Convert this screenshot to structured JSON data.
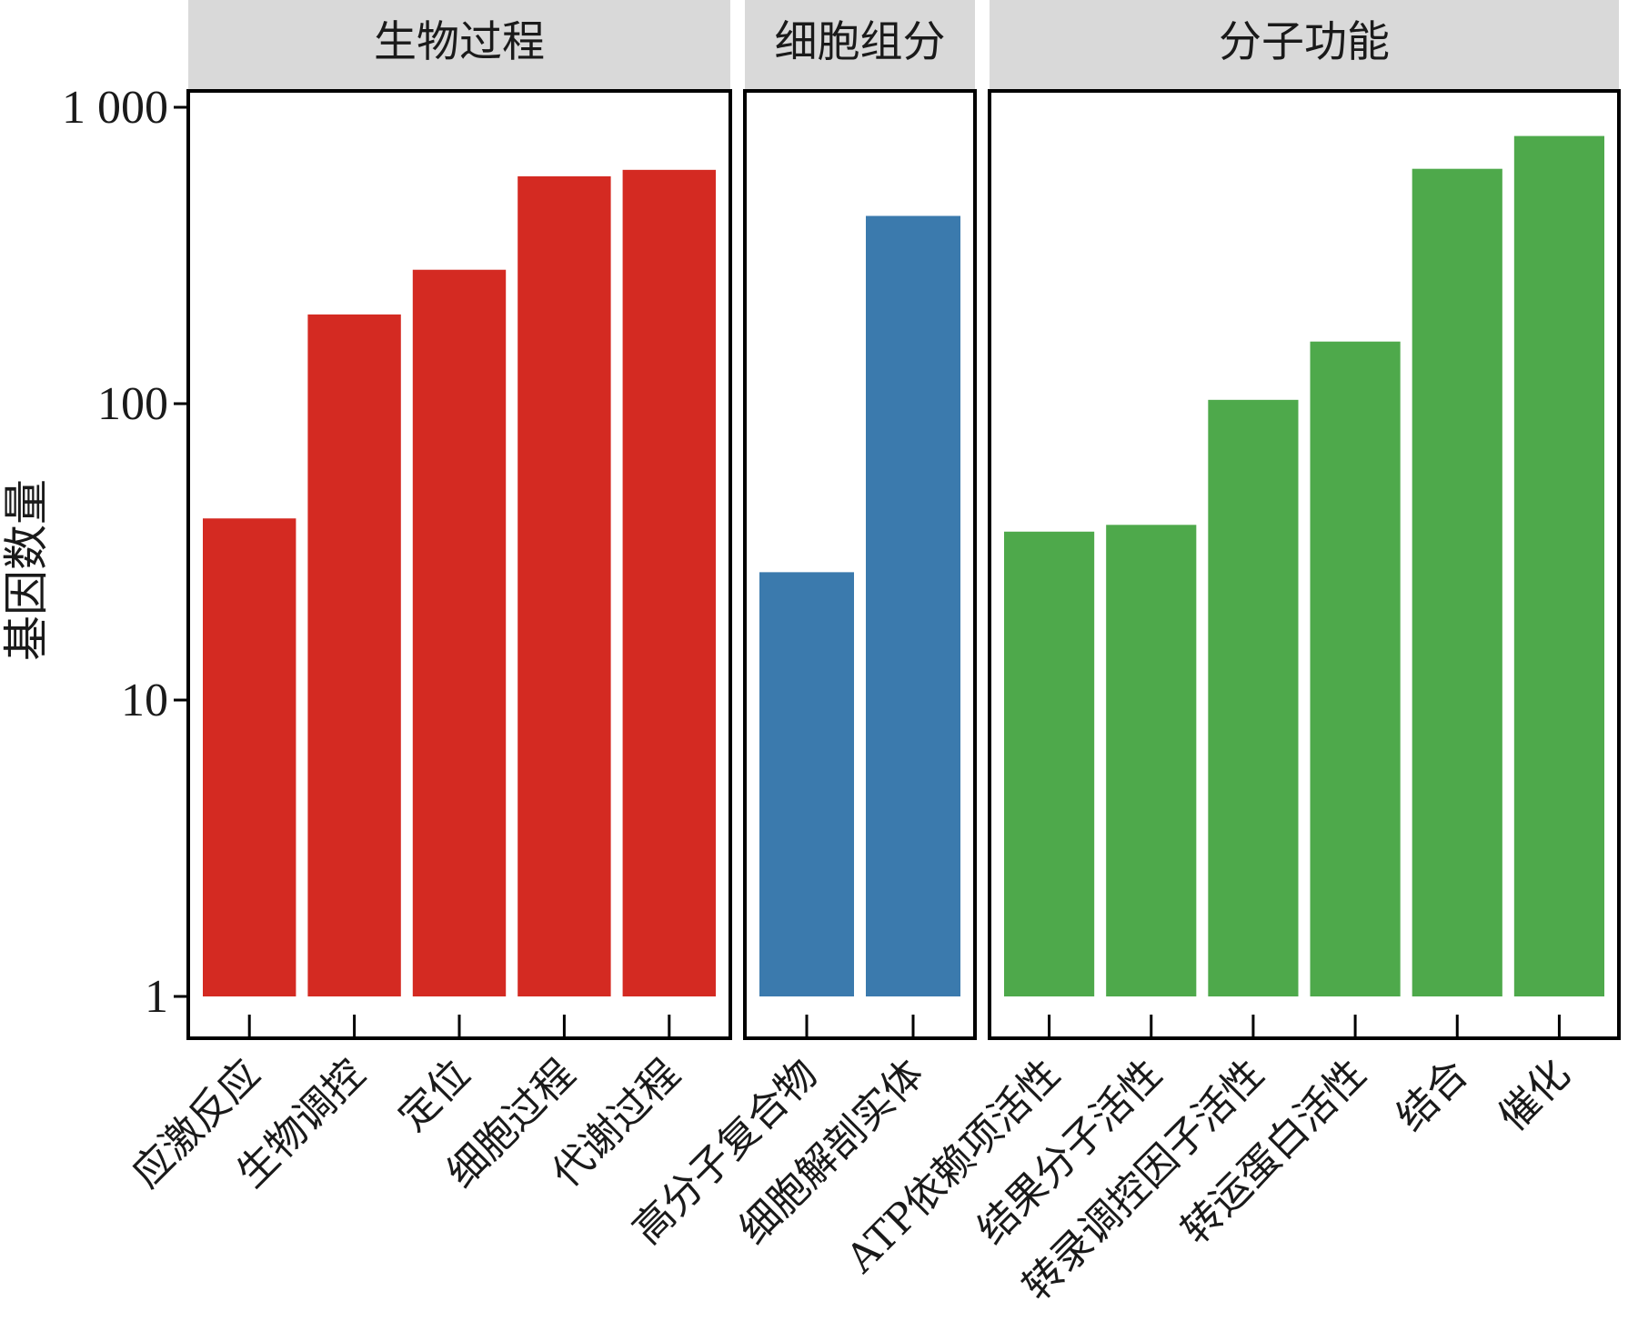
{
  "chart_data": {
    "type": "bar",
    "ylabel": "基因数量",
    "xlabel": "",
    "yscale": "log",
    "ylim": [
      0.725,
      1200
    ],
    "yticks": [
      {
        "value": 1,
        "label": "1"
      },
      {
        "value": 10,
        "label": "10"
      },
      {
        "value": 100,
        "label": "100"
      },
      {
        "value": 1000,
        "label": "1 000"
      }
    ],
    "grid": false,
    "legend": "none",
    "facets": [
      {
        "name": "生物过程",
        "color": "#d42a22",
        "categories": [
          "应激反应",
          "生物调控",
          "定位",
          "细胞过程",
          "代谢过程"
        ],
        "values": [
          41,
          200,
          283,
          585,
          615
        ]
      },
      {
        "name": "细胞组分",
        "color": "#3b7aad",
        "categories": [
          "高分子复合物",
          "细胞解剖实体"
        ],
        "values": [
          27,
          430
        ]
      },
      {
        "name": "分子功能",
        "color": "#4ea94b",
        "categories": [
          "ATP依赖项活性",
          "结果分子活性",
          "转录调控因子活性",
          "转运蛋白活性",
          "结合",
          "催化"
        ],
        "values": [
          37,
          39,
          103,
          162,
          620,
          800
        ]
      }
    ]
  }
}
